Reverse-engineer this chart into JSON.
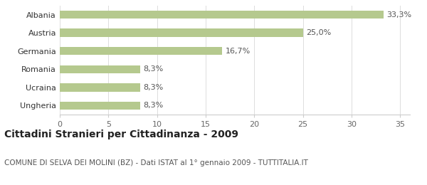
{
  "categories": [
    "Ungheria",
    "Ucraina",
    "Romania",
    "Germania",
    "Austria",
    "Albania"
  ],
  "values": [
    8.3,
    8.3,
    8.3,
    16.7,
    25.0,
    33.3
  ],
  "labels": [
    "8,3%",
    "8,3%",
    "8,3%",
    "16,7%",
    "25,0%",
    "33,3%"
  ],
  "bar_color": "#b5c98e",
  "background_color": "#ffffff",
  "title": "Cittadini Stranieri per Cittadinanza - 2009",
  "subtitle": "COMUNE DI SELVA DEI MOLINI (BZ) - Dati ISTAT al 1° gennaio 2009 - TUTTITALIA.IT",
  "xlim": [
    0,
    36
  ],
  "xticks": [
    0,
    5,
    10,
    15,
    20,
    25,
    30,
    35
  ],
  "title_fontsize": 10,
  "subtitle_fontsize": 7.5,
  "label_fontsize": 8,
  "tick_fontsize": 8,
  "bar_height": 0.45
}
